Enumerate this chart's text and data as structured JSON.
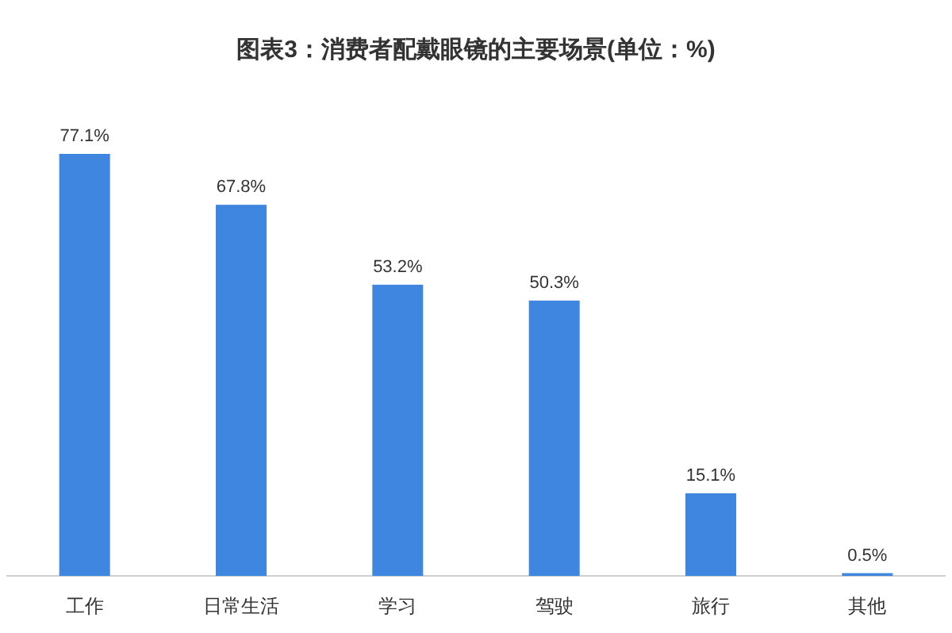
{
  "chart_data": {
    "type": "bar",
    "title": "图表3：消费者配戴眼镜的主要场景(单位：%)",
    "categories": [
      "工作",
      "日常生活",
      "学习",
      "驾驶",
      "旅行",
      "其他"
    ],
    "values": [
      77.1,
      67.8,
      53.2,
      50.3,
      15.1,
      0.5
    ],
    "color": "#3f86e0",
    "value_labels": [
      "77.1%",
      "67.8%",
      "53.2%",
      "50.3%",
      "15.1%",
      "0.5%"
    ]
  }
}
